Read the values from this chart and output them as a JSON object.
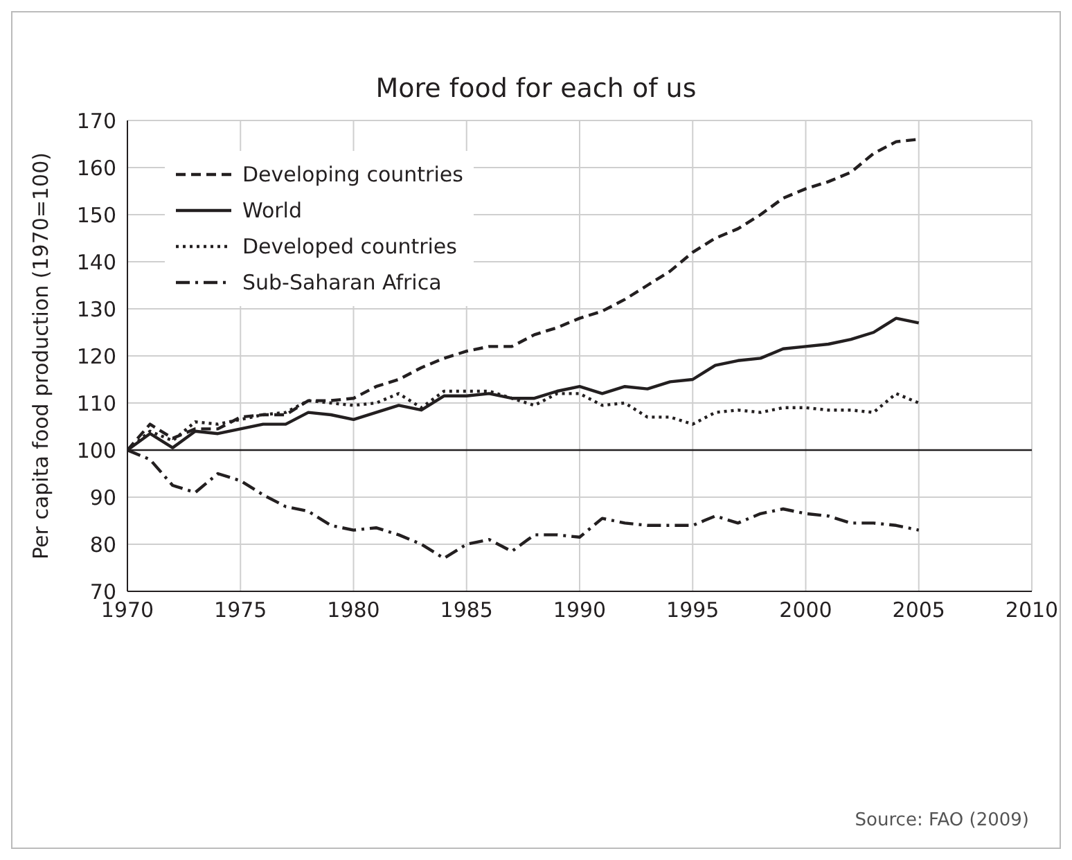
{
  "chart_data": {
    "type": "line",
    "title": "More food for each of us",
    "ylabel": "Per capita food production (1970=100)",
    "x": [
      1970,
      1971,
      1972,
      1973,
      1974,
      1975,
      1976,
      1977,
      1978,
      1979,
      1980,
      1981,
      1982,
      1983,
      1984,
      1985,
      1986,
      1987,
      1988,
      1989,
      1990,
      1991,
      1992,
      1993,
      1994,
      1995,
      1996,
      1997,
      1998,
      1999,
      2000,
      2001,
      2002,
      2003,
      2004,
      2005
    ],
    "series": [
      {
        "name": "Developing countries",
        "color": "#231f20",
        "line_style": "dashed",
        "values": [
          100,
          105.5,
          102.5,
          104.5,
          104.5,
          107,
          107.5,
          107.5,
          110.5,
          110.5,
          111,
          113.5,
          115,
          117.5,
          119.5,
          121,
          122,
          122,
          124.5,
          126,
          128,
          129.5,
          132,
          135,
          138,
          142,
          145,
          147,
          150,
          153.5,
          155.5,
          157,
          159,
          163,
          165.5,
          166
        ]
      },
      {
        "name": "World",
        "color": "#231f20",
        "line_style": "solid",
        "values": [
          100,
          103.5,
          100.5,
          104,
          103.5,
          104.5,
          105.5,
          105.5,
          108,
          107.5,
          106.5,
          108,
          109.5,
          108.5,
          111.5,
          111.5,
          112,
          111,
          111,
          112.5,
          113.5,
          112,
          113.5,
          113,
          114.5,
          115,
          118,
          119,
          119.5,
          121.5,
          122,
          122.5,
          123.5,
          125,
          128,
          127
        ]
      },
      {
        "name": "Developed countries",
        "color": "#231f20",
        "line_style": "dotted",
        "values": [
          100,
          104,
          102,
          106,
          105.5,
          106.5,
          107.5,
          108,
          110.5,
          110,
          109.5,
          110,
          112,
          109,
          112.5,
          112.5,
          112.5,
          111,
          109.5,
          112,
          112,
          109.5,
          110,
          107,
          107,
          105.5,
          108,
          108.5,
          108,
          109,
          109,
          108.5,
          108.5,
          108,
          112,
          110
        ]
      },
      {
        "name": "Sub-Saharan Africa",
        "color": "#231f20",
        "line_style": "dashdot",
        "values": [
          100,
          98,
          92.5,
          91,
          95,
          93.5,
          90.5,
          88,
          87,
          84,
          83,
          83.5,
          82,
          80,
          77,
          80,
          81,
          78.5,
          82,
          82,
          81.5,
          85.5,
          84.5,
          84,
          84,
          84,
          86,
          84.5,
          86.5,
          87.5,
          86.5,
          86,
          84.5,
          84.5,
          84,
          83
        ]
      }
    ],
    "xlim": [
      1970,
      2010
    ],
    "xticks": [
      1970,
      1975,
      1980,
      1985,
      1990,
      1995,
      2000,
      2005,
      2010
    ],
    "ylim": [
      70,
      170
    ],
    "yticks": [
      70,
      80,
      90,
      100,
      110,
      120,
      130,
      140,
      150,
      160,
      170
    ],
    "grid": true,
    "legend": "top left",
    "marker": "none",
    "ref_lines": [
      {
        "axis": "y",
        "value": 100,
        "color": "#231f20"
      }
    ],
    "annotations": [
      "Source: FAO (2009)"
    ]
  }
}
